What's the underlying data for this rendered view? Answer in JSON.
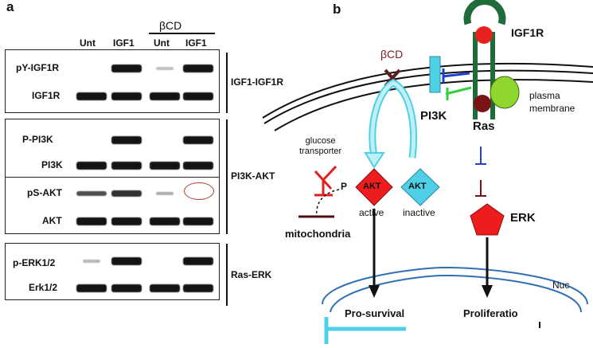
{
  "panel_a": {
    "label": "a",
    "treatment_header": "βCD",
    "columns": [
      "Unt",
      "IGF1",
      "Unt",
      "IGF1"
    ],
    "groups": [
      {
        "name": "IGF1-IGF1R",
        "rows": [
          {
            "label": "pY-IGF1R",
            "intensity": [
              0,
              1,
              0.1,
              1
            ]
          },
          {
            "label": "IGF1R",
            "intensity": [
              1,
              1,
              1,
              1
            ]
          }
        ]
      },
      {
        "name": "PI3K-AKT",
        "rows": [
          {
            "label": "P-PI3K",
            "intensity": [
              0,
              1,
              0,
              1
            ]
          },
          {
            "label": "PI3K",
            "intensity": [
              1,
              1,
              1,
              1
            ]
          },
          {
            "label": "pS-AKT",
            "intensity": [
              0.6,
              0.8,
              0.3,
              0
            ]
          },
          {
            "label": "AKT",
            "intensity": [
              1,
              1,
              1,
              1
            ]
          }
        ]
      },
      {
        "name": "Ras-ERK",
        "rows": [
          {
            "label": "p-ERK1/2",
            "intensity": [
              0.2,
              1,
              0,
              1
            ]
          },
          {
            "label": "Erk1/2",
            "intensity": [
              1,
              1,
              1,
              1
            ]
          }
        ]
      }
    ],
    "highlight_color": "#b03a2e"
  },
  "panel_b": {
    "label": "b",
    "receptor": "IGF1R",
    "membrane": "plasma\nmembrane",
    "inhibitor": "βCD",
    "pi3k": "PI3K",
    "ras": "Ras",
    "glucose": "glucose\ntransporter",
    "phospho": "P",
    "akt_active_symbol": "AKT",
    "akt_inactive_symbol": "AKT",
    "akt_active_label": "active",
    "akt_inactive_label": "inactive",
    "mitochondria": "mitochondria",
    "erk": "ERK",
    "nucleus": "Nuc",
    "pro_survival": "Pro-survival",
    "proliferation": "Proliferatio",
    "colors": {
      "receptor_green": "#1f6b3a",
      "receptor_red": "#e8201e",
      "ras_green": "#8fd62e",
      "ras_maroon": "#7a1414",
      "pi3k_cyan": "#4fd0e6",
      "akt_red": "#ee1c1c",
      "erk_red": "#ee1c1c",
      "nucleus_blue": "#2f6fb5",
      "inhibition_red": "#e02020",
      "inhibition_blue": "#2040d0",
      "inhibition_green": "#30d040",
      "inhibition_maroon": "#7a1414"
    }
  }
}
